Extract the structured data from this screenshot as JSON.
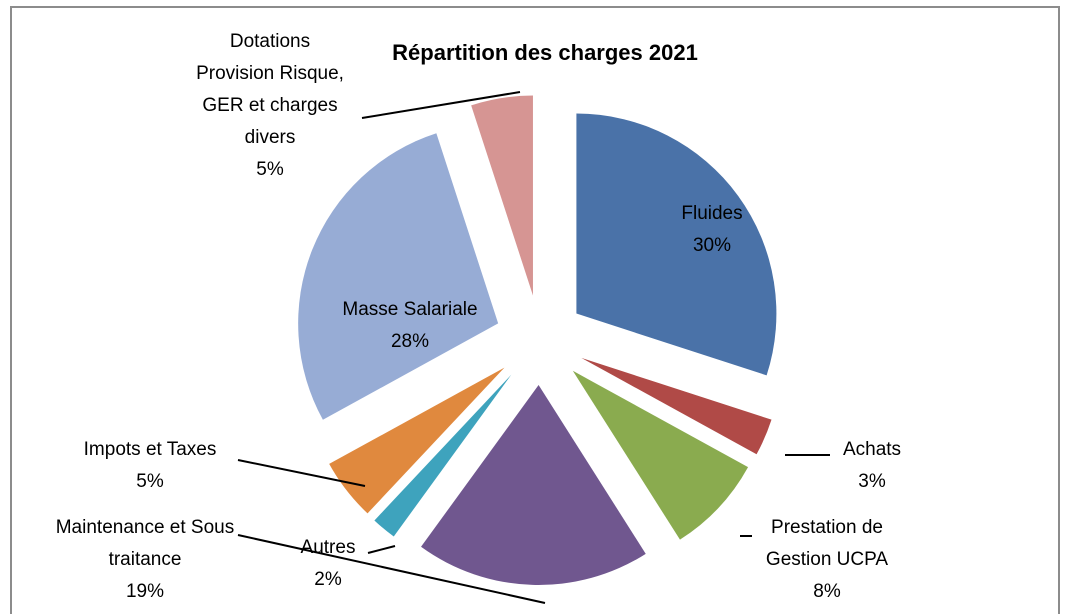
{
  "chart_data": {
    "type": "pie",
    "title": "Répartition des charges 2021",
    "categories": [
      "Fluides",
      "Achats",
      "Prestation de Gestion UCPA",
      "Maintenance et Sous traitance",
      "Autres",
      "Impots et Taxes",
      "Masse Salariale",
      "Dotations Provision Risque, GER et charges divers"
    ],
    "values": [
      30,
      3,
      8,
      19,
      2,
      5,
      28,
      5
    ],
    "value_labels": [
      "30%",
      "3%",
      "8%",
      "19%",
      "2%",
      "5%",
      "28%",
      "5%"
    ],
    "colors": [
      "#4a72a8",
      "#b04a47",
      "#8aab4f",
      "#70578f",
      "#3ea3bd",
      "#e0893e",
      "#97acd5",
      "#d69593"
    ]
  }
}
